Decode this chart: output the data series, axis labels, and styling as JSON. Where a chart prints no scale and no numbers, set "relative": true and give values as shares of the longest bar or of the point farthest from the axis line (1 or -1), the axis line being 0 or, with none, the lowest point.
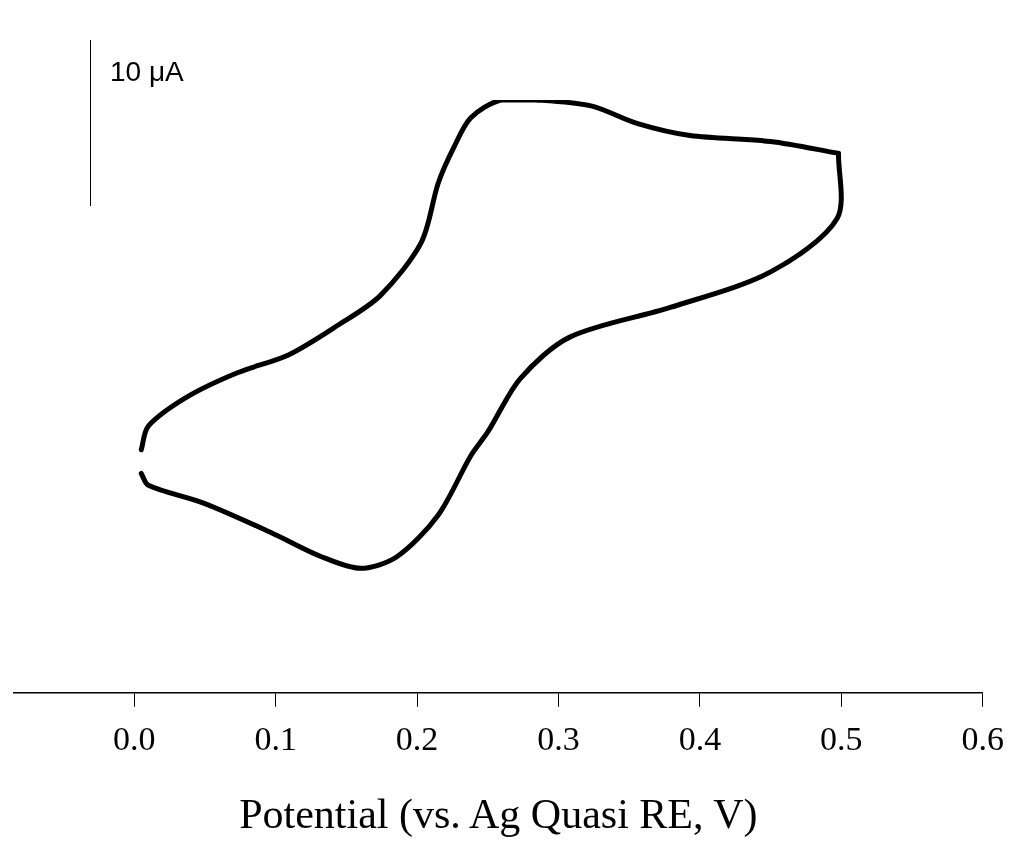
{
  "chart_data": {
    "type": "line",
    "relative": true,
    "xlabel": "Potential (vs. Ag Quasi RE, V)",
    "annotations": [
      "10 μA"
    ],
    "xlim": [
      -0.085,
      0.6
    ],
    "xticks": [
      {
        "value": 0,
        "label": "0.0"
      },
      {
        "value": 0.1,
        "label": "0.1"
      },
      {
        "value": 0.2,
        "label": "0.2"
      },
      {
        "value": 0.3,
        "label": "0.3"
      },
      {
        "value": 0.4,
        "label": "0.4"
      },
      {
        "value": 0.5,
        "label": "0.5"
      },
      {
        "value": 0.6,
        "label": "0.6"
      }
    ],
    "grid": false,
    "legend": false,
    "marker": "none",
    "line_style": "solid",
    "series": [
      {
        "color": "#000000",
        "x": [
          0.005,
          0.01,
          0.038,
          0.073,
          0.109,
          0.144,
          0.174,
          0.203,
          0.215,
          0.226,
          0.238,
          0.259,
          0.284,
          0.323,
          0.356,
          0.393,
          0.45,
          0.498
        ],
        "values": [
          0.41,
          0.45,
          0.5,
          0.54,
          0.57,
          0.62,
          0.67,
          0.76,
          0.86,
          0.92,
          0.97,
          1.0,
          1.0,
          0.99,
          0.96,
          0.94,
          0.93,
          0.91
        ]
      },
      {
        "color": "#000000",
        "x": [
          0.005,
          0.01,
          0.049,
          0.097,
          0.132,
          0.16,
          0.186,
          0.215,
          0.238,
          0.25,
          0.273,
          0.308,
          0.379,
          0.45,
          0.497,
          0.498
        ],
        "values": [
          0.37,
          0.35,
          0.32,
          0.27,
          0.23,
          0.21,
          0.23,
          0.3,
          0.4,
          0.44,
          0.53,
          0.6,
          0.65,
          0.71,
          0.8,
          0.91
        ]
      }
    ]
  }
}
